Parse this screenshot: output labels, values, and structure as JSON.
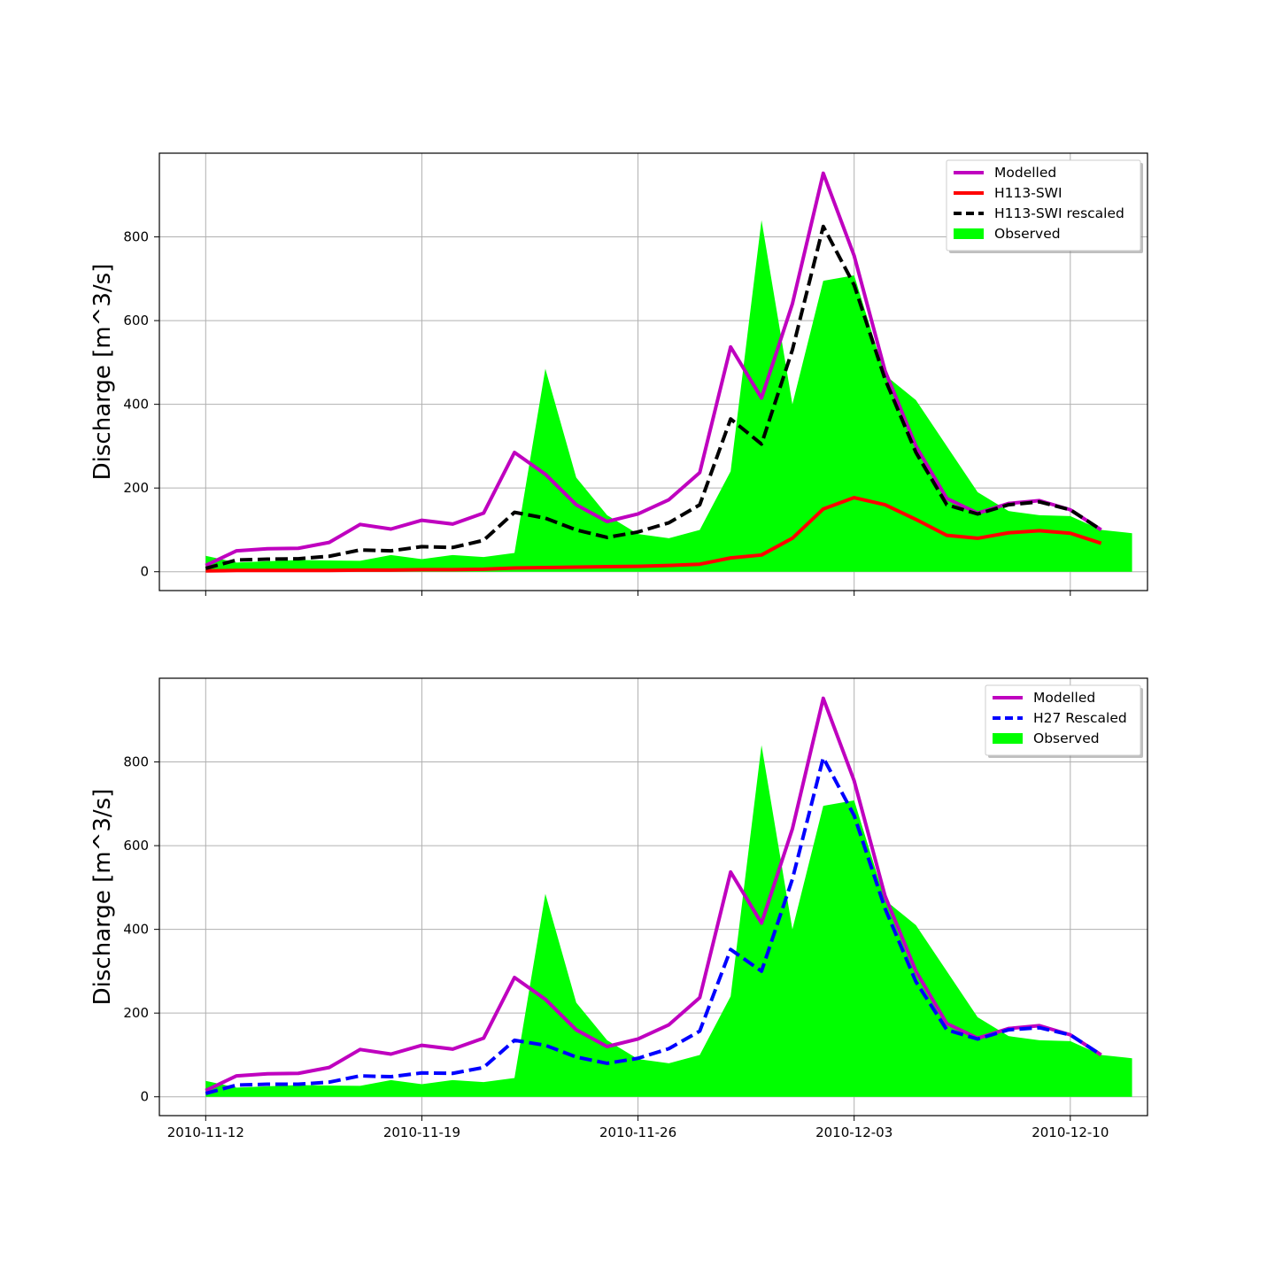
{
  "chart_data": [
    {
      "type": "line",
      "ylabel": "Discharge [m^3/s]",
      "xlabel": "",
      "title": "",
      "x_start": "2010-11-12",
      "x_end": "2010-12-11",
      "xlim": [
        "2010-11-10 12:00",
        "2010-12-12 12:00"
      ],
      "ylim": [
        -45,
        1000
      ],
      "x_ticks": [
        "2010-11-12",
        "2010-11-19",
        "2010-11-26",
        "2010-12-03",
        "2010-12-10"
      ],
      "x_tick_labels_shown": false,
      "y_ticks": [
        0,
        200,
        400,
        600,
        800
      ],
      "grid": true,
      "legend_position": "upper right",
      "series": [
        {
          "name": "Observed",
          "style": "area",
          "color": "#00ff00",
          "values": [
            38,
            22,
            25,
            28,
            27,
            26,
            40,
            30,
            40,
            35,
            45,
            485,
            225,
            135,
            90,
            80,
            100,
            240,
            840,
            400,
            695,
            708,
            470,
            410,
            300,
            190,
            145,
            135,
            133,
            100,
            92
          ]
        },
        {
          "name": "Modelled",
          "style": "solid",
          "color": "#bf00bf",
          "values": [
            15,
            50,
            55,
            56,
            70,
            113,
            102,
            123,
            114,
            140,
            285,
            233,
            160,
            120,
            138,
            172,
            237,
            537,
            415,
            640,
            952,
            755,
            480,
            300,
            175,
            140,
            163,
            170,
            148,
            100
          ]
        },
        {
          "name": "H113-SWI",
          "style": "solid",
          "color": "#ff0000",
          "values": [
            2,
            3,
            3,
            3,
            3,
            4,
            4,
            5,
            5,
            6,
            9,
            10,
            11,
            12,
            13,
            15,
            18,
            33,
            40,
            80,
            150,
            177,
            160,
            125,
            87,
            80,
            93,
            98,
            92,
            68
          ]
        },
        {
          "name": "H113-SWI rescaled",
          "style": "dashed",
          "color": "#000000",
          "values": [
            8,
            28,
            30,
            31,
            37,
            52,
            50,
            60,
            58,
            75,
            142,
            128,
            100,
            82,
            95,
            117,
            160,
            365,
            305,
            530,
            825,
            685,
            460,
            285,
            160,
            138,
            160,
            167,
            148,
            100
          ]
        }
      ]
    },
    {
      "type": "line",
      "ylabel": "Discharge [m^3/s]",
      "xlabel": "",
      "title": "",
      "x_start": "2010-11-12",
      "x_end": "2010-12-11",
      "xlim": [
        "2010-11-10 12:00",
        "2010-12-12 12:00"
      ],
      "ylim": [
        -45,
        1000
      ],
      "x_ticks": [
        "2010-11-12",
        "2010-11-19",
        "2010-11-26",
        "2010-12-03",
        "2010-12-10"
      ],
      "x_tick_labels_shown": true,
      "y_ticks": [
        0,
        200,
        400,
        600,
        800
      ],
      "grid": true,
      "legend_position": "upper right",
      "series": [
        {
          "name": "Observed",
          "style": "area",
          "color": "#00ff00",
          "values": [
            38,
            22,
            25,
            28,
            27,
            26,
            40,
            30,
            40,
            35,
            45,
            485,
            225,
            135,
            90,
            80,
            100,
            240,
            840,
            400,
            695,
            708,
            470,
            410,
            300,
            190,
            145,
            135,
            133,
            100,
            92
          ]
        },
        {
          "name": "Modelled",
          "style": "solid",
          "color": "#bf00bf",
          "values": [
            15,
            50,
            55,
            56,
            70,
            113,
            102,
            123,
            114,
            140,
            285,
            233,
            160,
            120,
            138,
            172,
            237,
            537,
            415,
            640,
            952,
            755,
            480,
            300,
            175,
            140,
            163,
            170,
            148,
            100
          ]
        },
        {
          "name": "H27 Rescaled",
          "style": "dashed",
          "color": "#0000ff",
          "values": [
            8,
            28,
            30,
            30,
            35,
            50,
            48,
            57,
            56,
            70,
            135,
            123,
            95,
            80,
            92,
            115,
            157,
            352,
            300,
            520,
            810,
            672,
            450,
            275,
            160,
            138,
            160,
            165,
            148,
            100
          ]
        }
      ]
    }
  ]
}
